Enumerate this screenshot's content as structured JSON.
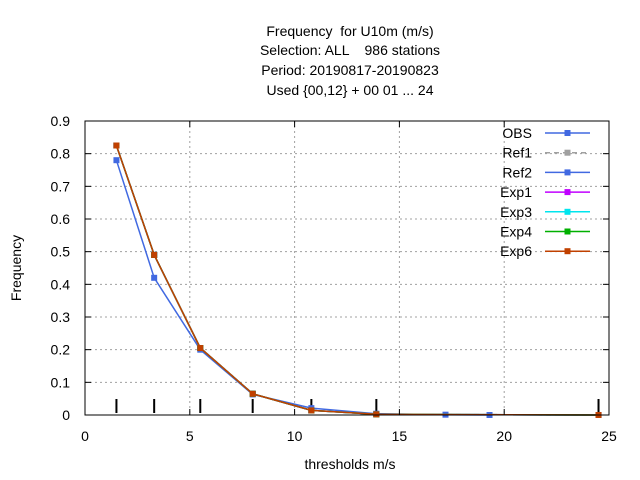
{
  "chart_data": {
    "type": "line",
    "title_lines": [
      "Frequency  for U10m (m/s)",
      "Selection: ALL    986 stations",
      "Period: 20190817-20190823",
      "Used {00,12} + 00 01 ... 24"
    ],
    "xlabel": "thresholds m/s",
    "ylabel": "Frequency",
    "xlim": [
      0,
      25
    ],
    "ylim": [
      0,
      0.9
    ],
    "xticks": [
      0,
      5,
      10,
      15,
      20,
      25
    ],
    "yticks": [
      0,
      0.1,
      0.2,
      0.3,
      0.4,
      0.5,
      0.6,
      0.7,
      0.8,
      0.9
    ],
    "grid": true,
    "legend_position": "top-right",
    "threshold_markers": [
      1.5,
      3.3,
      5.5,
      8.0,
      10.8,
      13.9,
      24.5
    ],
    "series": [
      {
        "name": "OBS",
        "color": "#4169e1",
        "dash": false,
        "x": [
          1.5,
          3.3,
          5.5,
          8.0,
          10.8,
          13.9,
          17.2,
          19.3
        ],
        "y": [
          0.78,
          0.42,
          0.2,
          0.063,
          0.021,
          0.004,
          0.001,
          0.0
        ]
      },
      {
        "name": "Ref1",
        "color": "#a0a0a0",
        "dash": true,
        "x": [
          1.5,
          3.3,
          5.5,
          8.0,
          10.8,
          13.9,
          24.5
        ],
        "y": [
          0.825,
          0.49,
          0.205,
          0.065,
          0.014,
          0.002,
          0.0
        ]
      },
      {
        "name": "Ref2",
        "color": "#4169e1",
        "dash": false,
        "x": [
          1.5,
          3.3,
          5.5,
          8.0,
          10.8,
          13.9,
          24.5
        ],
        "y": [
          0.825,
          0.49,
          0.205,
          0.065,
          0.014,
          0.002,
          0.0
        ]
      },
      {
        "name": "Exp1",
        "color": "#c000ff",
        "dash": false,
        "x": [
          1.5,
          3.3,
          5.5,
          8.0,
          10.8,
          13.9,
          24.5
        ],
        "y": [
          0.825,
          0.49,
          0.205,
          0.065,
          0.014,
          0.002,
          0.0
        ]
      },
      {
        "name": "Exp3",
        "color": "#00e5ee",
        "dash": false,
        "x": [
          1.5,
          3.3,
          5.5,
          8.0,
          10.8,
          13.9,
          24.5
        ],
        "y": [
          0.825,
          0.49,
          0.205,
          0.065,
          0.014,
          0.002,
          0.0
        ]
      },
      {
        "name": "Exp4",
        "color": "#00b000",
        "dash": false,
        "x": [
          1.5,
          3.3,
          5.5,
          8.0,
          10.8,
          13.9,
          24.5
        ],
        "y": [
          0.825,
          0.49,
          0.205,
          0.065,
          0.014,
          0.002,
          0.0
        ]
      },
      {
        "name": "Exp6",
        "color": "#c04000",
        "dash": false,
        "x": [
          1.5,
          3.3,
          5.5,
          8.0,
          10.8,
          13.9,
          24.5
        ],
        "y": [
          0.825,
          0.49,
          0.205,
          0.065,
          0.014,
          0.002,
          0.0
        ]
      }
    ]
  }
}
